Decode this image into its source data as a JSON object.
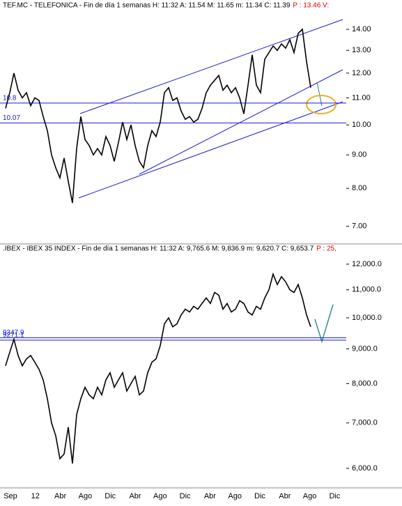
{
  "chart_data": [
    {
      "type": "line",
      "title": "TEF.MC - TELEFONICA - Fin de día 1 semanas  H: 11:32  A: 11.54  M: 11.65  m: 11.34  C: 11.39",
      "title_extra": "P : 13.46  V:",
      "log_scale": true,
      "ylim": [
        6.66,
        14.85
      ],
      "yticks": [
        {
          "value": 7,
          "label": "7.00"
        },
        {
          "value": 8,
          "label": "8.00"
        },
        {
          "value": 9,
          "label": "9.00"
        },
        {
          "value": 10,
          "label": "10.00"
        },
        {
          "value": 11,
          "label": "11.00"
        },
        {
          "value": 12,
          "label": "12.00"
        },
        {
          "value": 13,
          "label": "13.00"
        },
        {
          "value": 14,
          "label": "14.00"
        }
      ],
      "hlines": [
        10.8,
        10.07
      ],
      "color": "#000000",
      "values": [
        10.6,
        11.2,
        12.0,
        11.3,
        11.0,
        11.2,
        10.7,
        11.0,
        10.9,
        10.3,
        9.8,
        9.0,
        8.6,
        8.3,
        8.9,
        8.2,
        7.6,
        9.2,
        10.3,
        9.5,
        9.3,
        9.0,
        9.2,
        9.0,
        9.6,
        9.3,
        8.8,
        9.4,
        10.1,
        9.5,
        10.0,
        9.3,
        8.8,
        8.6,
        9.3,
        9.8,
        9.6,
        10.1,
        11.2,
        11.4,
        10.9,
        11.0,
        10.5,
        10.2,
        10.3,
        10.1,
        10.2,
        10.6,
        11.2,
        11.5,
        11.7,
        11.9,
        11.3,
        11.5,
        11.2,
        11.4,
        11.0,
        10.4,
        11.5,
        12.8,
        11.5,
        11.2,
        12.6,
        12.9,
        13.2,
        13.0,
        13.3,
        13.1,
        13.5,
        12.9,
        13.8,
        14.0,
        12.5,
        11.4
      ]
    },
    {
      "type": "line",
      "title": ".IBEX - IBEX 35 INDEX - Fin de día 1 semanas  H: 11:32  A: 9,765.6  M: 9,836.9  m: 9,620.7  C: 9,653.7",
      "title_extra": "P : 25,",
      "log_scale": true,
      "ylim": [
        5642,
        12404
      ],
      "yticks": [
        {
          "value": 6000,
          "label": "6,000.0"
        },
        {
          "value": 7000,
          "label": "7,000.0"
        },
        {
          "value": 8000,
          "label": "8,000.0"
        },
        {
          "value": 9000,
          "label": "9,000.0"
        },
        {
          "value": 10000,
          "label": "10,000.0"
        },
        {
          "value": 11000,
          "label": "11,000.0"
        },
        {
          "value": 12000,
          "label": "12,000.0"
        }
      ],
      "hlines": [
        9347.9,
        9271.1
      ],
      "color": "#000000",
      "values": [
        8500,
        8900,
        9300,
        8800,
        8500,
        8700,
        8800,
        8600,
        8400,
        8100,
        7600,
        7000,
        6700,
        6200,
        6300,
        6900,
        6100,
        7200,
        7600,
        7900,
        7700,
        7600,
        7900,
        7700,
        8100,
        8300,
        7900,
        8100,
        8300,
        7800,
        8000,
        8200,
        7700,
        7800,
        8300,
        8600,
        8700,
        9100,
        9800,
        10000,
        9700,
        9800,
        10100,
        10300,
        10200,
        10400,
        10300,
        10500,
        10700,
        10500,
        10900,
        10800,
        10300,
        10500,
        10200,
        10300,
        10600,
        10500,
        10200,
        10100,
        10400,
        10300,
        10700,
        11000,
        11600,
        11200,
        11500,
        11300,
        11000,
        10900,
        11200,
        10700,
        10100,
        9700
      ],
      "xtick_labels": [
        "Sep",
        "12",
        "Abr",
        "Ago",
        "Dic",
        "Abr",
        "Ago",
        "Dic",
        "Abr",
        "Ago",
        "Dic",
        "Abr",
        "Ago",
        "Dic"
      ]
    }
  ]
}
